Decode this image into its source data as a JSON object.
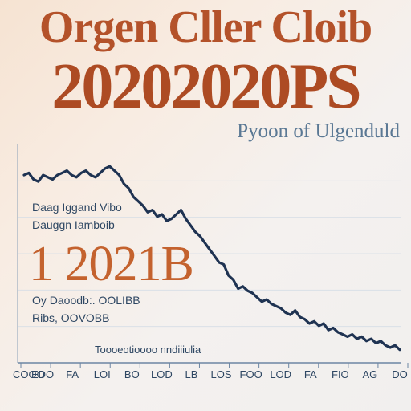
{
  "header": {
    "title_line1": "Orgen Cller Cloib",
    "title_line2": "20202020PS",
    "subtitle": "Pyoon of Ulgenduld"
  },
  "side_text": {
    "line1": "Daag Iggand Vibo",
    "line2": "Dauggn Iamboib",
    "big_number": "1 2021B",
    "line3": "Oy Daoodb:. OOLIBB",
    "line4": "Ribs, OOVOBB"
  },
  "colors": {
    "title": "#b4522a",
    "line": "#1f3352",
    "axis": "#6c86a3",
    "grid": "#d5dde6",
    "subtitle": "#5a7894",
    "big_number": "#c4622e"
  },
  "chart_data": {
    "type": "line",
    "title": "",
    "xlabel": "",
    "ylabel": "",
    "x_tick_labels": [
      "COOO",
      "EDO",
      "FA",
      "LOI",
      "BO",
      "LOD",
      "LB",
      "LOS",
      "FOO",
      "LOD",
      "FA",
      "FIO",
      "AG",
      "DO"
    ],
    "axis_caption": "Toooeotioooo nndiiiulia",
    "series": [
      {
        "name": "",
        "values": [
          86,
          87,
          84,
          83,
          86,
          85,
          84,
          86,
          87,
          88,
          86,
          85,
          87,
          88,
          86,
          85,
          87,
          89,
          90,
          88,
          86,
          82,
          80,
          76,
          74,
          72,
          69,
          70,
          67,
          68,
          65,
          66,
          68,
          70,
          66,
          63,
          60,
          58,
          55,
          52,
          49,
          46,
          45,
          40,
          38,
          34,
          35,
          33,
          32,
          30,
          28,
          29,
          27,
          26,
          25,
          23,
          22,
          24,
          21,
          20,
          18,
          19,
          17,
          18,
          15,
          16,
          14,
          13,
          12,
          13,
          11,
          12,
          10,
          11,
          9,
          10,
          8,
          7,
          8,
          6
        ]
      }
    ],
    "ylim": [
      0,
      100
    ],
    "grid": true
  }
}
